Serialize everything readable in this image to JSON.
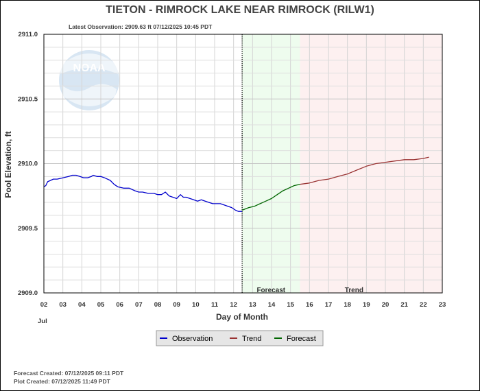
{
  "chart_data": {
    "type": "line",
    "title": "TIETON - RIMROCK LAKE NEAR RIMROCK  (RILW1)",
    "subtitle": "Latest Observation: 2909.63 ft 07/12/2025 10:45 PDT",
    "xlabel": "Day of Month",
    "ylabel": "Pool Elevation, ft",
    "month_label": "Jul",
    "xlim": [
      2,
      23
    ],
    "ylim": [
      2909.0,
      2911.0
    ],
    "x_ticks": [
      "02",
      "03",
      "04",
      "05",
      "06",
      "07",
      "08",
      "09",
      "10",
      "11",
      "12",
      "13",
      "14",
      "15",
      "16",
      "17",
      "18",
      "19",
      "20",
      "21",
      "22",
      "23"
    ],
    "y_ticks": [
      {
        "value": 2909.0,
        "label": "2909.0"
      },
      {
        "value": 2909.5,
        "label": "2909.5"
      },
      {
        "value": 2910.0,
        "label": "2910.0"
      },
      {
        "value": 2910.5,
        "label": "2910.5"
      },
      {
        "value": 2911.0,
        "label": "2911.0"
      }
    ],
    "grid": true,
    "zones": [
      {
        "label": "Forecast",
        "start": 12.45,
        "end": 15.5,
        "color": "#eefcee"
      },
      {
        "label": "Trend",
        "start": 15.5,
        "end": 23.0,
        "color": "#fdf0f0"
      }
    ],
    "current_time_marker": 12.45,
    "series": [
      {
        "name": "Observation",
        "color": "#0000cc",
        "x": [
          2.0,
          2.1,
          2.2,
          2.35,
          2.5,
          2.7,
          3.0,
          3.3,
          3.5,
          3.7,
          3.9,
          4.1,
          4.3,
          4.5,
          4.6,
          4.8,
          5.0,
          5.2,
          5.5,
          5.7,
          5.9,
          6.2,
          6.5,
          6.8,
          7.0,
          7.2,
          7.5,
          7.8,
          8.0,
          8.2,
          8.4,
          8.6,
          8.8,
          9.0,
          9.2,
          9.35,
          9.5,
          9.7,
          9.9,
          10.1,
          10.3,
          10.5,
          10.7,
          10.9,
          11.1,
          11.3,
          11.5,
          11.7,
          11.9,
          12.1,
          12.25,
          12.45
        ],
        "y": [
          2909.82,
          2909.83,
          2909.86,
          2909.87,
          2909.88,
          2909.88,
          2909.89,
          2909.9,
          2909.91,
          2909.91,
          2909.9,
          2909.89,
          2909.89,
          2909.9,
          2909.91,
          2909.9,
          2909.9,
          2909.89,
          2909.87,
          2909.84,
          2909.82,
          2909.81,
          2909.81,
          2909.79,
          2909.78,
          2909.78,
          2909.77,
          2909.77,
          2909.76,
          2909.76,
          2909.78,
          2909.75,
          2909.74,
          2909.73,
          2909.76,
          2909.74,
          2909.74,
          2909.73,
          2909.72,
          2909.71,
          2909.72,
          2909.71,
          2909.7,
          2909.69,
          2909.69,
          2909.69,
          2909.68,
          2909.67,
          2909.66,
          2909.64,
          2909.63,
          2909.63
        ]
      },
      {
        "name": "Forecast",
        "color": "#006600",
        "x": [
          12.45,
          12.8,
          13.1,
          13.4,
          13.7,
          14.0,
          14.3,
          14.6,
          14.9,
          15.2,
          15.5
        ],
        "y": [
          2909.64,
          2909.66,
          2909.67,
          2909.69,
          2909.71,
          2909.73,
          2909.76,
          2909.79,
          2909.81,
          2909.83,
          2909.84
        ]
      },
      {
        "name": "Trend",
        "color": "#993333",
        "x": [
          15.5,
          16.0,
          16.5,
          17.0,
          17.5,
          18.0,
          18.5,
          19.0,
          19.5,
          20.0,
          20.5,
          21.0,
          21.5,
          22.0,
          22.3
        ],
        "y": [
          2909.84,
          2909.85,
          2909.87,
          2909.88,
          2909.9,
          2909.92,
          2909.95,
          2909.98,
          2910.0,
          2910.01,
          2910.02,
          2910.03,
          2910.03,
          2910.04,
          2910.05
        ]
      }
    ],
    "legend": {
      "placement": "bottom-center",
      "items": [
        {
          "label": "Observation",
          "color": "#0000cc"
        },
        {
          "label": "Trend",
          "color": "#993333"
        },
        {
          "label": "Forecast",
          "color": "#006600"
        }
      ]
    },
    "watermark_text": "NOAA"
  },
  "footer": {
    "forecast_created": "Forecast Created: 07/12/2025 09:11 PDT",
    "plot_created": "Plot Created: 07/12/2025 11:49 PDT"
  }
}
